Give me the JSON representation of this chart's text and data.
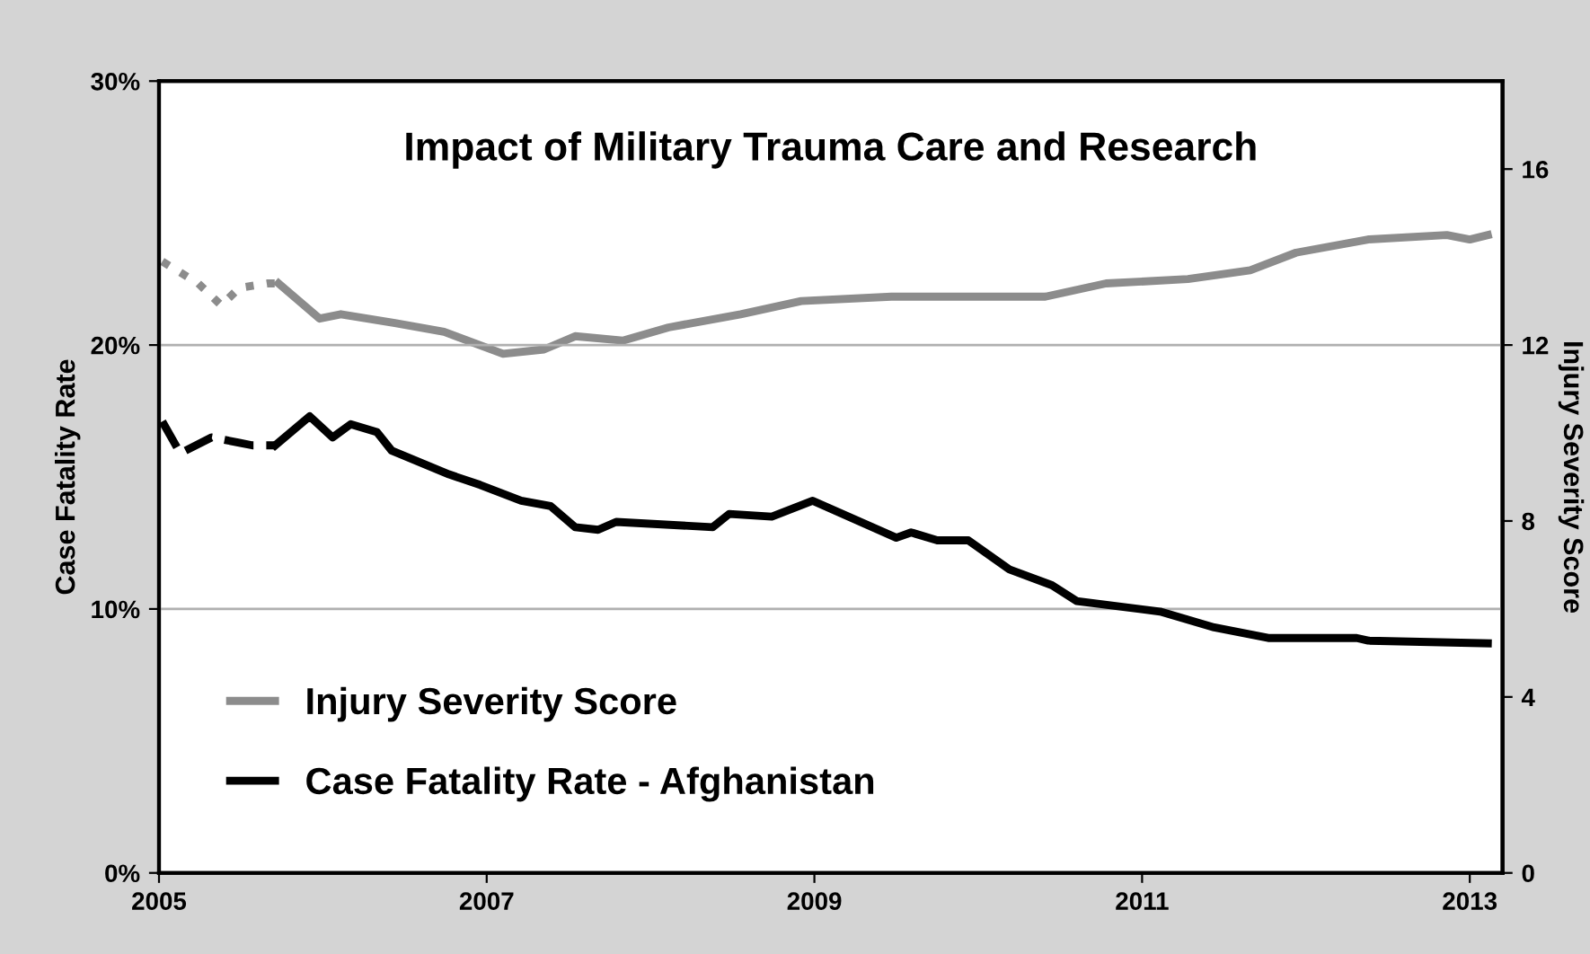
{
  "chart_data": {
    "type": "line",
    "title": "Impact of Military Trauma Care and Research",
    "ylabel": "Case Fatality Rate",
    "y2label": "Injury Severity Score",
    "xlim": [
      2005,
      2013.2
    ],
    "xticks": [
      2005,
      2007,
      2009,
      2011,
      2013
    ],
    "ylim": [
      0,
      30
    ],
    "yticks": [
      {
        "value": 0,
        "label": "0%"
      },
      {
        "value": 10,
        "label": "10%"
      },
      {
        "value": 20,
        "label": "20%"
      },
      {
        "value": 30,
        "label": "30%"
      }
    ],
    "y2lim": [
      0,
      18
    ],
    "y2ticks": [
      0,
      4,
      8,
      12,
      16
    ],
    "grid": "y",
    "legend": "bottom left",
    "series": [
      {
        "color": "#8c8c8c",
        "axis": "y2",
        "line_style": "dotted",
        "x": [
          2005.02,
          2005.24,
          2005.38,
          2005.49,
          2005.66,
          2005.73
        ],
        "values": [
          13.9,
          13.4,
          12.9,
          13.3,
          13.4,
          13.4
        ]
      },
      {
        "name": "Injury Severity Score",
        "color": "#8c8c8c",
        "axis": "y2",
        "line_style": "solid",
        "x": [
          2005.73,
          2005.98,
          2006.11,
          2006.44,
          2006.74,
          2007.1,
          2007.35,
          2007.54,
          2007.83,
          2008.11,
          2008.55,
          2008.92,
          2009.47,
          2010.41,
          2010.78,
          2011.28,
          2011.66,
          2011.94,
          2012.38,
          2012.86,
          2013.0,
          2013.11
        ],
        "values": [
          13.4,
          12.6,
          12.7,
          12.5,
          12.3,
          11.8,
          11.9,
          12.2,
          12.1,
          12.4,
          12.7,
          13.0,
          13.1,
          13.1,
          13.4,
          13.5,
          13.7,
          14.1,
          14.4,
          14.5,
          14.4,
          14.5
        ]
      },
      {
        "color": "#000000",
        "line_style": "dashed",
        "x": [
          2005.02,
          2005.13,
          2005.32,
          2005.49,
          2005.57,
          2005.71
        ],
        "values": [
          17.1,
          15.9,
          16.5,
          16.3,
          16.2,
          16.2
        ]
      },
      {
        "name": "Case Fatality Rate - Afghanistan",
        "color": "#000000",
        "line_style": "solid",
        "x": [
          2005.71,
          2005.92,
          2006.06,
          2006.17,
          2006.33,
          2006.42,
          2006.77,
          2006.96,
          2007.21,
          2007.39,
          2007.54,
          2007.68,
          2007.79,
          2008.38,
          2008.48,
          2008.74,
          2008.99,
          2009.5,
          2009.59,
          2009.75,
          2009.94,
          2010.19,
          2010.45,
          2010.6,
          2011.11,
          2011.44,
          2011.77,
          2012.31,
          2012.38,
          2013.11
        ],
        "values": [
          16.2,
          17.3,
          16.5,
          17.0,
          16.7,
          16.0,
          15.1,
          14.7,
          14.1,
          13.9,
          13.1,
          13.0,
          13.3,
          13.1,
          13.6,
          13.5,
          14.1,
          12.7,
          12.9,
          12.6,
          12.6,
          11.5,
          10.9,
          10.3,
          9.9,
          9.3,
          8.9,
          8.9,
          8.8,
          8.7
        ]
      }
    ]
  }
}
